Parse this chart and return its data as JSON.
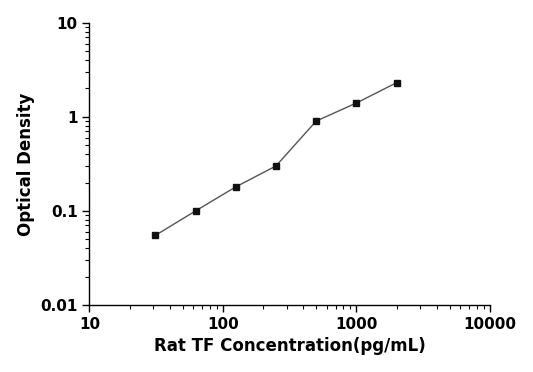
{
  "x": [
    31.25,
    62.5,
    125,
    250,
    500,
    1000,
    2000
  ],
  "y": [
    0.055,
    0.1,
    0.18,
    0.3,
    0.9,
    1.4,
    2.3
  ],
  "xlabel": "Rat TF Concentration(pg/mL)",
  "ylabel": "Optical Density",
  "xlim": [
    10,
    10000
  ],
  "ylim": [
    0.01,
    10
  ],
  "line_color": "#555555",
  "marker_color": "#111111",
  "marker": "s",
  "marker_size": 5,
  "line_width": 1.0,
  "background_color": "#ffffff",
  "xlabel_fontsize": 12,
  "ylabel_fontsize": 12,
  "tick_fontsize": 11,
  "ytick_labels": [
    "0.01",
    "0.1",
    "1",
    "10"
  ],
  "ytick_values": [
    0.01,
    0.1,
    1,
    10
  ],
  "xtick_labels": [
    "10",
    "100",
    "1000",
    "10000"
  ],
  "xtick_values": [
    10,
    100,
    1000,
    10000
  ]
}
